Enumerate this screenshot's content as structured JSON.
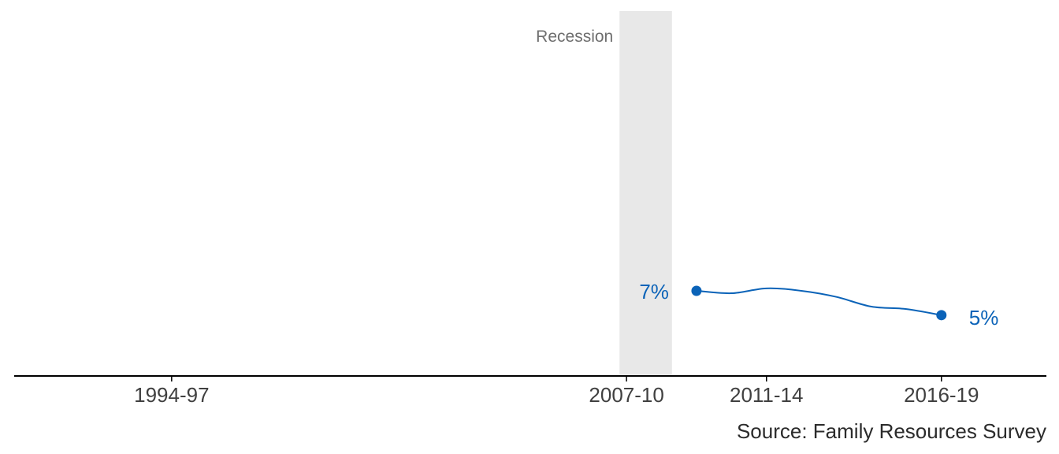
{
  "chart_data": {
    "type": "line",
    "x_axis": {
      "ticks": [
        "1994-97",
        "2007-10",
        "2011-14",
        "2016-19"
      ]
    },
    "ylim": [
      0,
      30
    ],
    "grid": false,
    "shaded_period": {
      "label": "Recession",
      "start_year": 2008.3,
      "end_year": 2009.8
    },
    "series": [
      {
        "color": "#0b63b8",
        "points": [
          {
            "x": 2010.5,
            "y": 7.0
          },
          {
            "x": 2011.5,
            "y": 6.8
          },
          {
            "x": 2012.5,
            "y": 7.2
          },
          {
            "x": 2013.5,
            "y": 7.0
          },
          {
            "x": 2014.5,
            "y": 6.5
          },
          {
            "x": 2015.5,
            "y": 5.7
          },
          {
            "x": 2016.5,
            "y": 5.5
          },
          {
            "x": 2017.5,
            "y": 5.0
          }
        ],
        "start_label": "7%",
        "end_label": "5%"
      }
    ],
    "source": "Source: Family Resources Survey"
  }
}
